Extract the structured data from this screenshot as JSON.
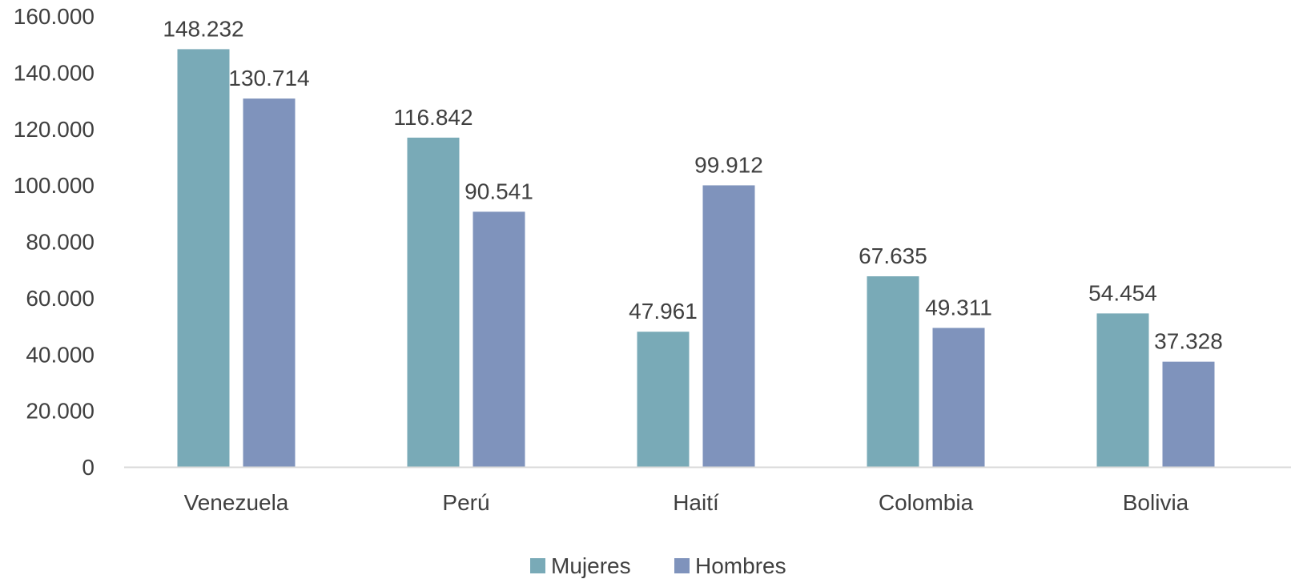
{
  "chart_data": {
    "type": "bar",
    "title": "",
    "xlabel": "",
    "ylabel": "",
    "categories": [
      "Venezuela",
      "Perú",
      "Haití",
      "Colombia",
      "Bolivia"
    ],
    "series": [
      {
        "name": "Mujeres",
        "values": [
          148232,
          116842,
          47961,
          67635,
          54454
        ],
        "color": "#79AAB7"
      },
      {
        "name": "Hombres",
        "values": [
          130714,
          90541,
          99912,
          49311,
          37328
        ],
        "color": "#7F93BC"
      }
    ],
    "value_labels": [
      [
        "148.232",
        "116.842",
        "47.961",
        "67.635",
        "54.454"
      ],
      [
        "130.714",
        "90.541",
        "99.912",
        "49.311",
        "37.328"
      ]
    ],
    "ylim": [
      0,
      160000
    ],
    "yticks": [
      0,
      20000,
      40000,
      60000,
      80000,
      100000,
      120000,
      140000,
      160000
    ],
    "ytick_labels": [
      "0",
      "20.000",
      "40.000",
      "60.000",
      "80.000",
      "100.000",
      "120.000",
      "140.000",
      "160.000"
    ],
    "grid": false,
    "legend_position": "bottom",
    "axis_color": "#D9D9D9",
    "text_color": "#404040"
  }
}
